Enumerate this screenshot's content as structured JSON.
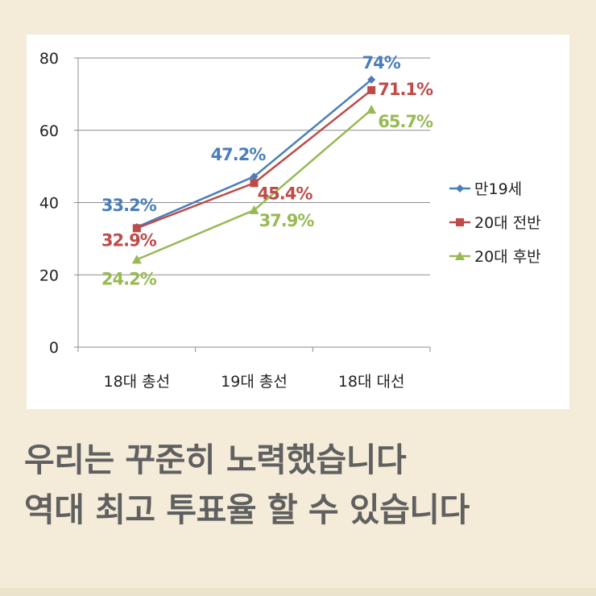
{
  "chart_data": {
    "type": "line",
    "categories": [
      "18대 총선",
      "19대 총선",
      "18대 대선"
    ],
    "ylim": [
      0,
      80
    ],
    "yticks": [
      0,
      20,
      40,
      60,
      80
    ],
    "grid": true,
    "legend_position": "right",
    "series": [
      {
        "name": "만19세",
        "values": [
          33.2,
          47.2,
          74
        ],
        "labels": [
          "33.2%",
          "47.2%",
          "74%"
        ],
        "color": "#4a7ebb",
        "marker": "diamond"
      },
      {
        "name": "20대 전반",
        "values": [
          32.9,
          45.4,
          71.1
        ],
        "labels": [
          "32.9%",
          "45.4%",
          "71.1%"
        ],
        "color": "#be4b48",
        "marker": "square"
      },
      {
        "name": "20대 후반",
        "values": [
          24.2,
          37.9,
          65.7
        ],
        "labels": [
          "24.2%",
          "37.9%",
          "65.7%"
        ],
        "color": "#98b954",
        "marker": "triangle"
      }
    ]
  },
  "caption": {
    "line1": "우리는 꾸준히 노력했습니다",
    "line2": "역대 최고 투표율 할 수 있습니다"
  }
}
